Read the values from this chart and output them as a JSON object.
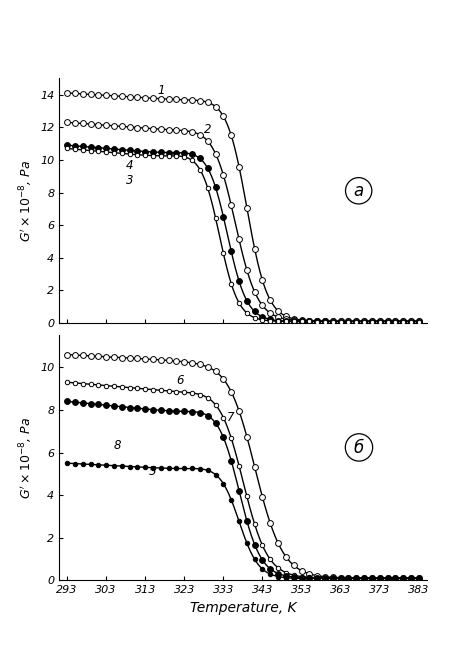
{
  "xlabel": "Temperature, K",
  "xticks": [
    293,
    303,
    313,
    323,
    333,
    343,
    353,
    363,
    373,
    383
  ],
  "panel_a_yticks": [
    0,
    2,
    4,
    6,
    8,
    10,
    12,
    14
  ],
  "panel_a_ylim": [
    0,
    15.0
  ],
  "panel_b_yticks": [
    0,
    2,
    4,
    6,
    8,
    10
  ],
  "panel_b_ylim": [
    0,
    11.5
  ],
  "xlim": [
    291,
    385
  ],
  "bg_color": "#ffffff"
}
